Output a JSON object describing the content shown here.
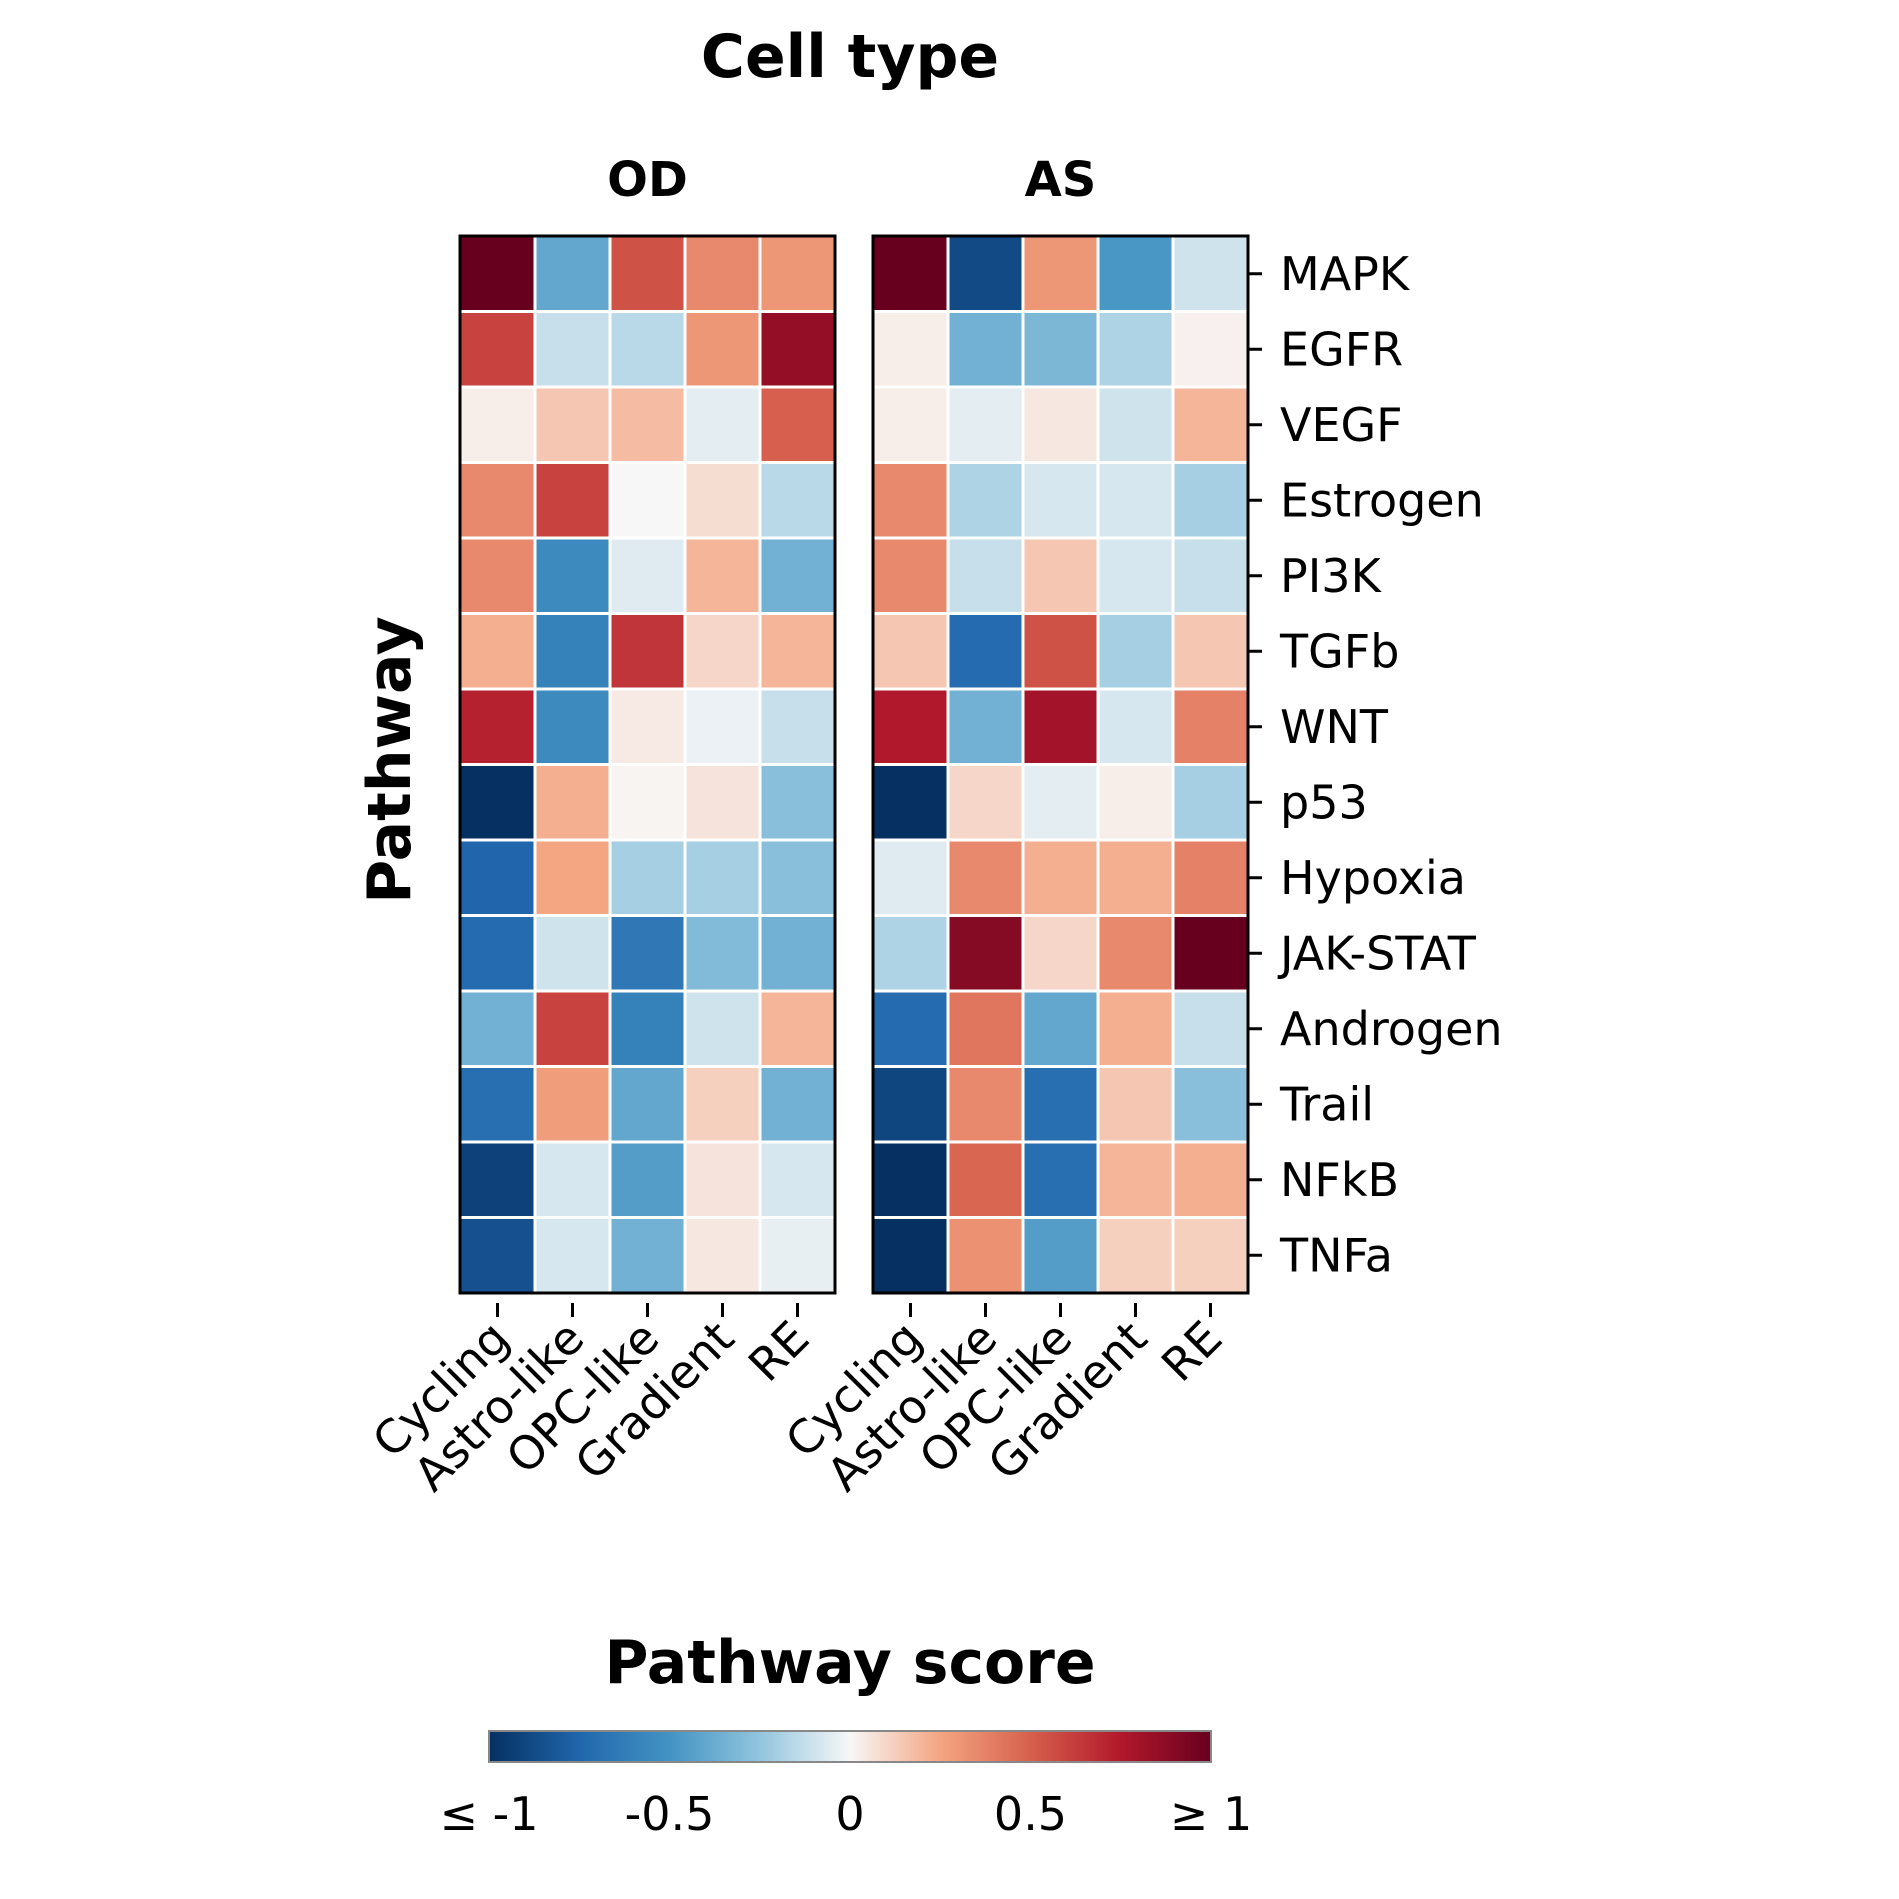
{
  "chart_data": {
    "type": "heatmap",
    "title": "Cell type",
    "ylabel": "Pathway",
    "colorbar_title": "Pathway score",
    "colorbar_ticks": [
      "≤ -1",
      "-0.5",
      "0",
      "0.5",
      "≥ 1"
    ],
    "colorbar_range": [
      -1,
      1
    ],
    "colormap": "RdBu_r",
    "rows": [
      "MAPK",
      "EGFR",
      "VEGF",
      "Estrogen",
      "PI3K",
      "TGFb",
      "WNT",
      "p53",
      "Hypoxia",
      "JAK-STAT",
      "Androgen",
      "Trail",
      "NFkB",
      "TNFa"
    ],
    "columns": [
      "Cycling",
      "Astro-like",
      "OPC-like",
      "Gradient",
      "RE"
    ],
    "panels": [
      {
        "name": "OD",
        "values": [
          [
            1.0,
            -0.4,
            0.55,
            0.35,
            0.3
          ],
          [
            0.6,
            -0.12,
            -0.15,
            0.3,
            0.85
          ],
          [
            0.03,
            0.15,
            0.18,
            -0.05,
            0.5
          ],
          [
            0.35,
            0.6,
            0.0,
            0.08,
            -0.15
          ],
          [
            0.35,
            -0.55,
            -0.06,
            0.2,
            -0.35
          ],
          [
            0.22,
            -0.6,
            0.65,
            0.1,
            0.2
          ],
          [
            0.72,
            -0.55,
            0.04,
            -0.03,
            -0.12
          ],
          [
            -1.0,
            0.22,
            0.01,
            0.06,
            -0.28
          ],
          [
            -0.75,
            0.25,
            -0.2,
            -0.2,
            -0.28
          ],
          [
            -0.72,
            -0.1,
            -0.65,
            -0.3,
            -0.35
          ],
          [
            -0.35,
            0.6,
            -0.6,
            -0.1,
            0.2
          ],
          [
            -0.7,
            0.28,
            -0.4,
            0.12,
            -0.35
          ],
          [
            -0.92,
            -0.08,
            -0.45,
            0.06,
            -0.08
          ],
          [
            -0.85,
            -0.08,
            -0.35,
            0.05,
            -0.04
          ]
        ]
      },
      {
        "name": "AS",
        "values": [
          [
            1.0,
            -0.88,
            0.3,
            -0.48,
            -0.1
          ],
          [
            0.03,
            -0.35,
            -0.32,
            -0.18,
            0.02
          ],
          [
            0.03,
            -0.05,
            0.05,
            -0.1,
            0.2
          ],
          [
            0.35,
            -0.18,
            -0.08,
            -0.08,
            -0.2
          ],
          [
            0.35,
            -0.12,
            0.15,
            -0.08,
            -0.12
          ],
          [
            0.15,
            -0.72,
            0.55,
            -0.2,
            0.15
          ],
          [
            0.75,
            -0.35,
            0.8,
            -0.08,
            0.38
          ],
          [
            -1.0,
            0.1,
            -0.05,
            0.03,
            -0.2
          ],
          [
            -0.06,
            0.35,
            0.22,
            0.22,
            0.38
          ],
          [
            -0.18,
            0.9,
            0.1,
            0.35,
            1.0
          ],
          [
            -0.72,
            0.42,
            -0.4,
            0.22,
            -0.12
          ],
          [
            -0.9,
            0.35,
            -0.7,
            0.15,
            -0.28
          ],
          [
            -1.0,
            0.48,
            -0.7,
            0.2,
            0.22
          ],
          [
            -1.0,
            0.32,
            -0.45,
            0.12,
            0.12
          ]
        ]
      }
    ]
  }
}
